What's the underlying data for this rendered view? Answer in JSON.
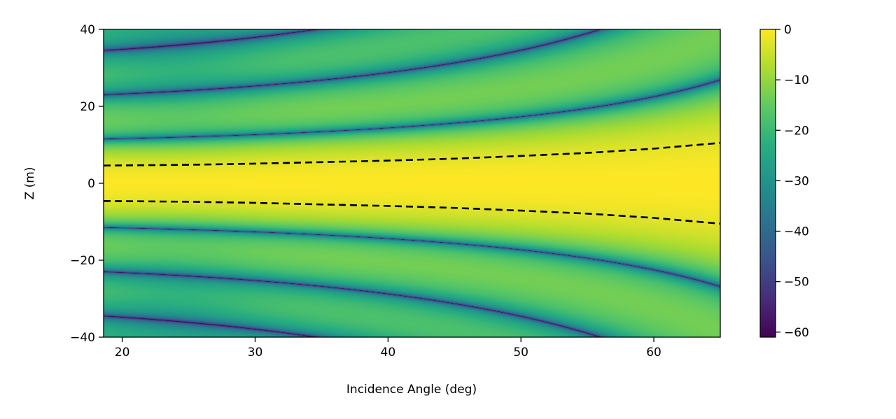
{
  "chart_data": {
    "type": "heatmap",
    "title": "",
    "xlabel": "Incidence Angle (deg)",
    "ylabel": "Z (m)",
    "xlim": [
      18.6,
      65
    ],
    "ylim": [
      -40,
      40
    ],
    "x_ticks": [
      20,
      30,
      40,
      50,
      60
    ],
    "x_tick_labels": [
      "20",
      "30",
      "40",
      "50",
      "60"
    ],
    "y_ticks": [
      -40,
      -20,
      0,
      20,
      40
    ],
    "y_tick_labels": [
      "−40",
      "−20",
      "0",
      "20",
      "40"
    ],
    "colormap": "viridis",
    "colorbar": {
      "range": [
        -61,
        0
      ],
      "ticks": [
        0,
        -10,
        -20,
        -30,
        -40,
        -50,
        -60
      ],
      "tick_labels": [
        "0",
        "−10",
        "−20",
        "−30",
        "−40",
        "−50",
        "−60"
      ]
    },
    "grid": false,
    "series": [
      {
        "style": "dashed",
        "color": "#000000",
        "x": [
          18.6,
          25,
          30,
          35,
          40,
          45,
          50,
          55,
          60,
          65
        ],
        "y": [
          4.6,
          4.8,
          5.1,
          5.5,
          5.9,
          6.4,
          7.1,
          7.9,
          9.0,
          10.5
        ]
      },
      {
        "style": "dashed",
        "color": "#000000",
        "x": [
          18.6,
          25,
          30,
          35,
          40,
          45,
          50,
          55,
          60,
          65
        ],
        "y": [
          -4.6,
          -4.8,
          -5.1,
          -5.5,
          -5.9,
          -6.4,
          -7.1,
          -7.9,
          -9.0,
          -10.5
        ]
      }
    ]
  }
}
